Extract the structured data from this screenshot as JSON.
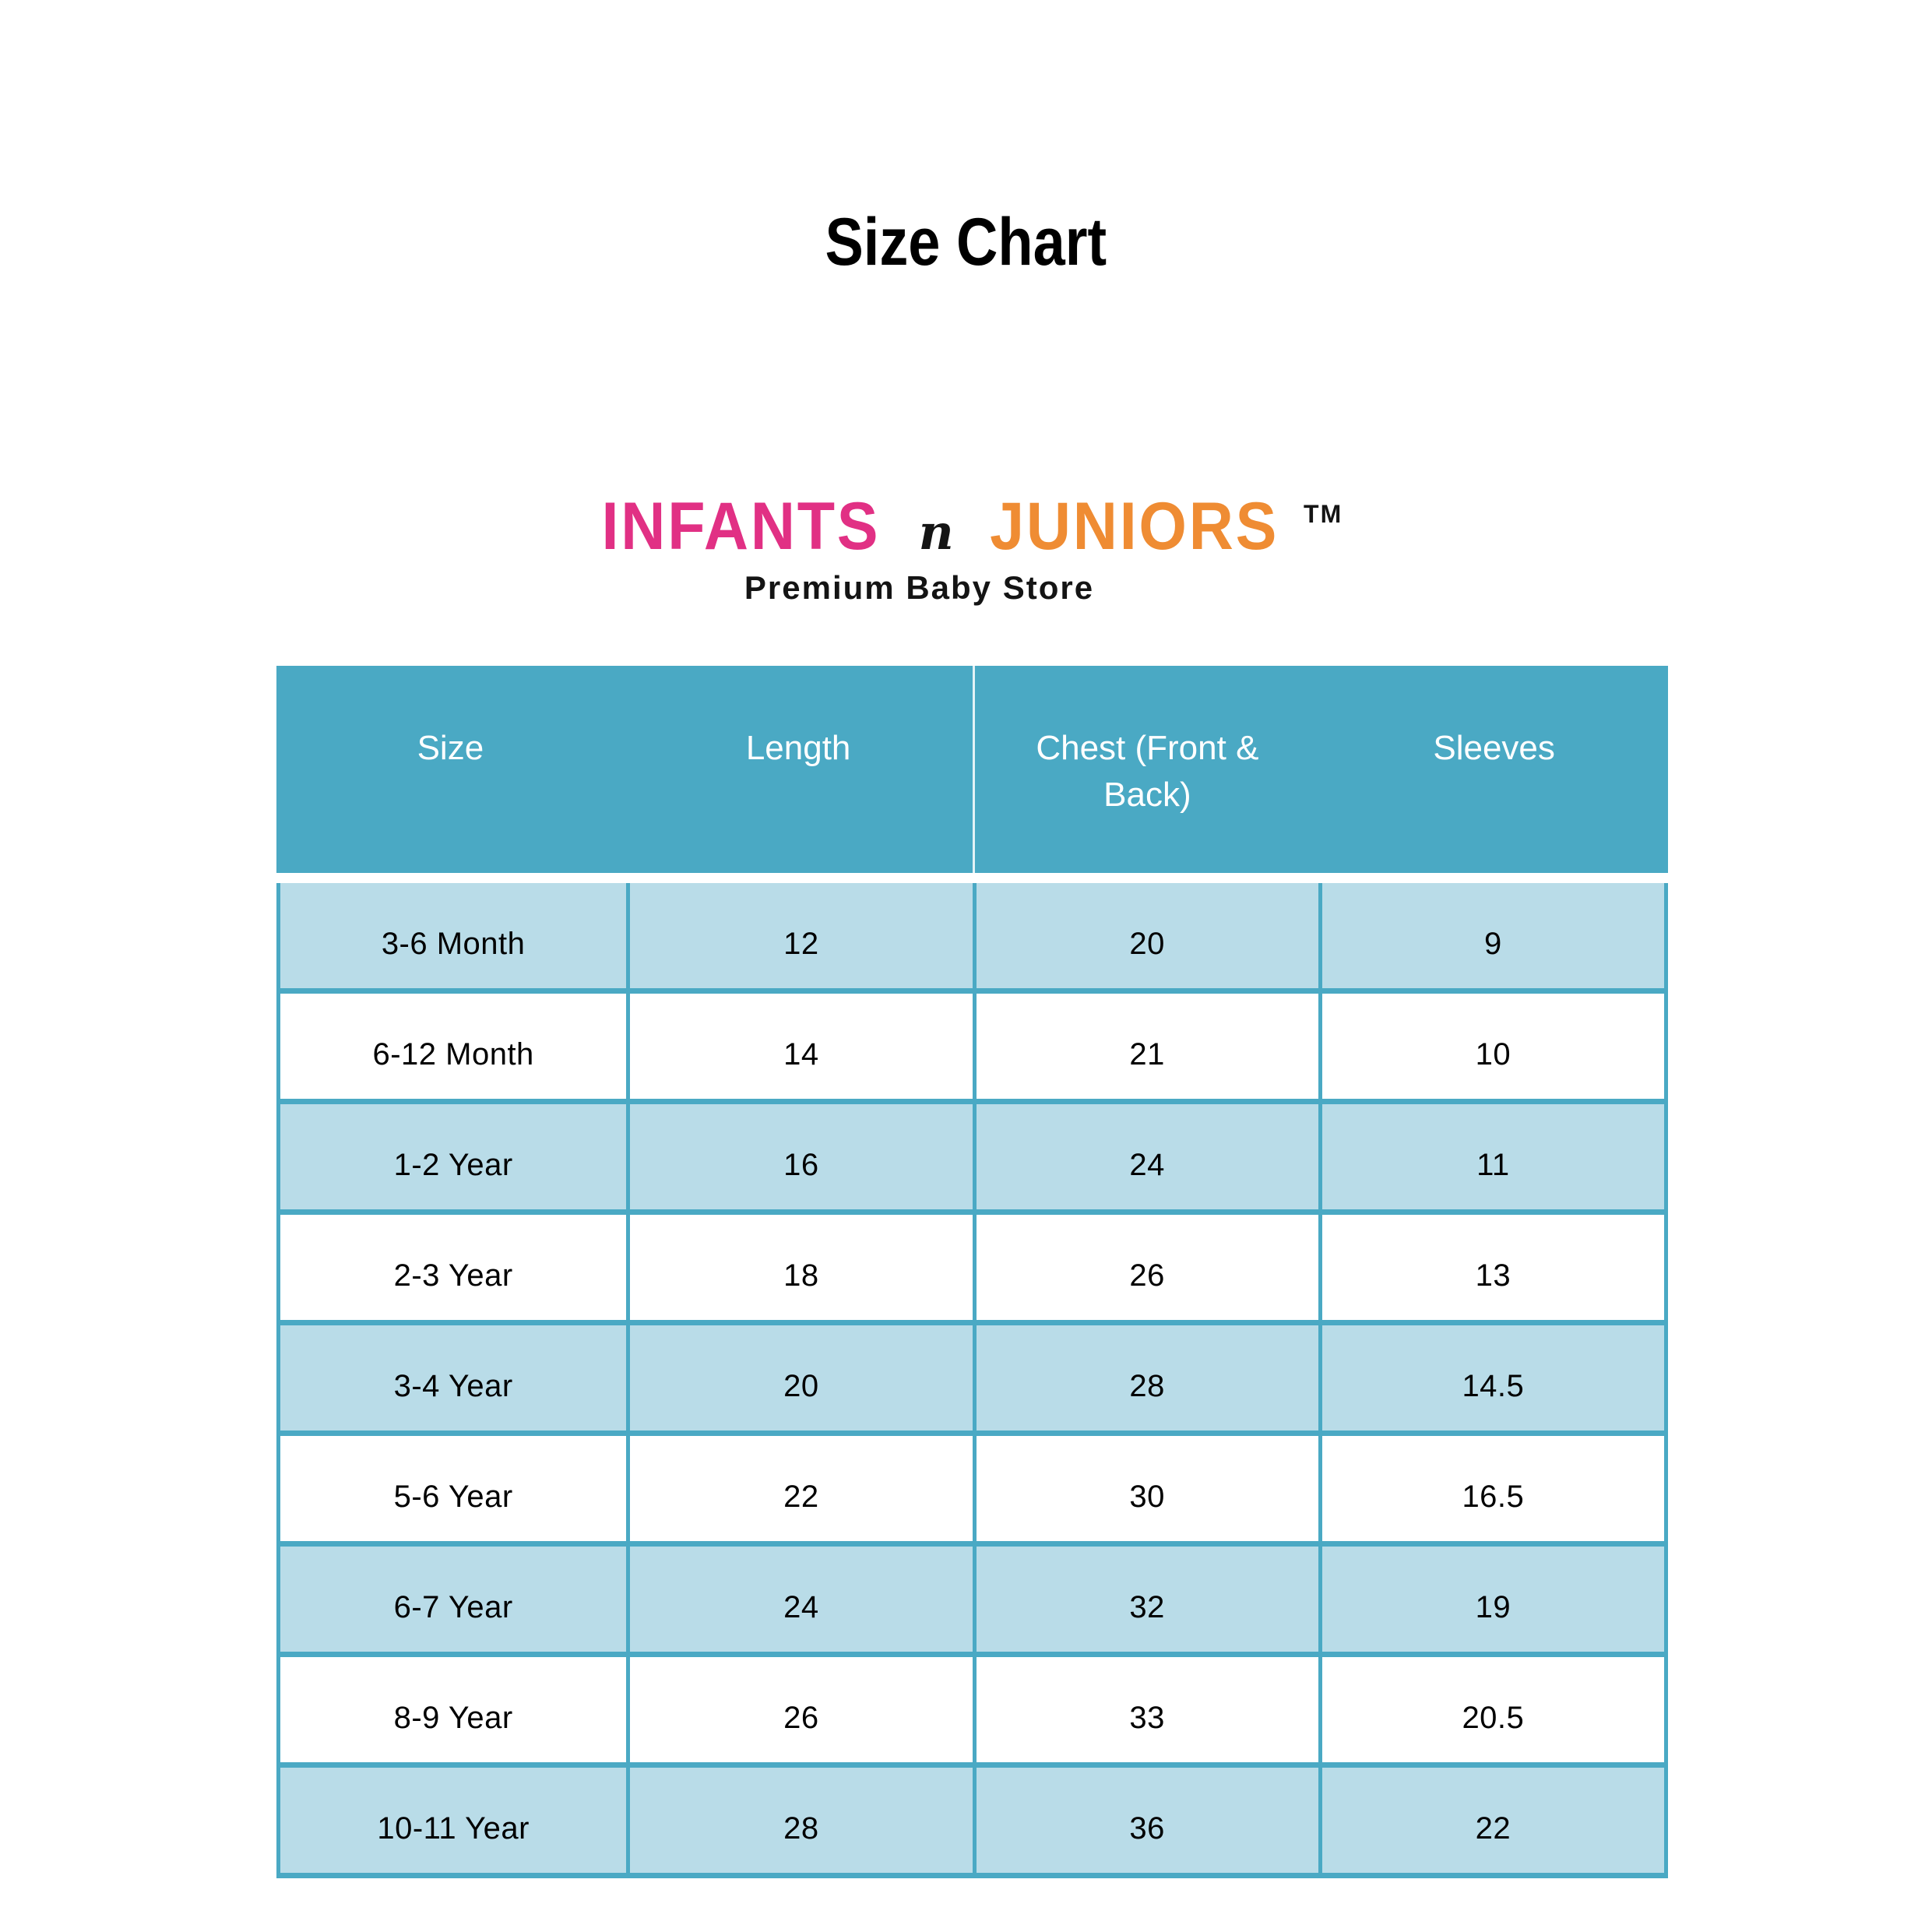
{
  "page": {
    "title": "Size Chart"
  },
  "logo": {
    "brand_first": "INFANTS",
    "brand_connector": "n",
    "brand_second": "JUNIORS",
    "trademark": "TM",
    "tagline": "Premium Baby Store"
  },
  "table": {
    "columns": [
      "Size",
      "Length",
      "Chest (Front & Back)",
      "Sleeves"
    ],
    "rows": [
      [
        "3-6 Month",
        "12",
        "20",
        "9"
      ],
      [
        "6-12 Month",
        "14",
        "21",
        "10"
      ],
      [
        "1-2 Year",
        "16",
        "24",
        "11"
      ],
      [
        "2-3 Year",
        "18",
        "26",
        "13"
      ],
      [
        "3-4 Year",
        "20",
        "28",
        "14.5"
      ],
      [
        "5-6 Year",
        "22",
        "30",
        "16.5"
      ],
      [
        "6-7 Year",
        "24",
        "32",
        "19"
      ],
      [
        "8-9 Year",
        "26",
        "33",
        "20.5"
      ],
      [
        "10-11 Year",
        "28",
        "36",
        "22"
      ]
    ]
  },
  "theme": {
    "teal": "#4AA9C4",
    "light_blue_row": "#B9DCE8",
    "white_row": "#FFFFFF",
    "text_black": "#000000",
    "brand_pink": "#E13084",
    "brand_orange": "#EF8C33"
  }
}
